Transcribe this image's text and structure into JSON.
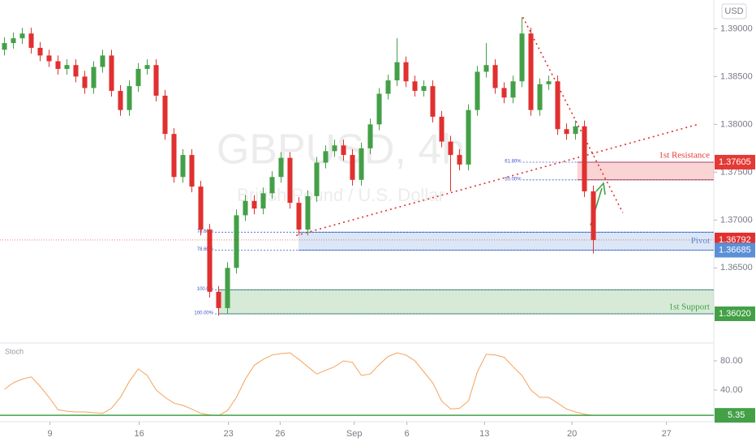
{
  "chart_data": {
    "type": "candlestick",
    "symbol_watermark": "GBPUSD, 4h",
    "description_watermark": "British Pound / U.S. Dollar",
    "currency_button": "USD",
    "up_color": "#43a047",
    "down_color": "#e0302f",
    "x": [
      0,
      1,
      2,
      3,
      4,
      5,
      6,
      7,
      8,
      9,
      10,
      11,
      12,
      13,
      14,
      15,
      16,
      17,
      18,
      19,
      20,
      21,
      22,
      23,
      24,
      25,
      26,
      27,
      28,
      29,
      30,
      31,
      32,
      33,
      34,
      35,
      36,
      37,
      38,
      39,
      40,
      41,
      42,
      43,
      44,
      45,
      46,
      47,
      48,
      49,
      50,
      51,
      52,
      53,
      54,
      55,
      56,
      57,
      58,
      59,
      60,
      61,
      62,
      63,
      64,
      65,
      66
    ],
    "open": [
      1.3878,
      1.3885,
      1.389,
      1.3895,
      1.388,
      1.3872,
      1.3866,
      1.3858,
      1.3862,
      1.385,
      1.3838,
      1.386,
      1.3872,
      1.3835,
      1.3815,
      1.384,
      1.3858,
      1.3862,
      1.383,
      1.379,
      1.3745,
      1.3768,
      1.3735,
      1.369,
      1.3625,
      1.3608,
      1.365,
      1.3705,
      1.372,
      1.3712,
      1.3728,
      1.3745,
      1.3765,
      1.3718,
      1.369,
      1.3725,
      1.376,
      1.3772,
      1.3778,
      1.3768,
      1.3742,
      1.3775,
      1.38,
      1.3832,
      1.3846,
      1.3865,
      1.3845,
      1.3835,
      1.384,
      1.3808,
      1.3782,
      1.3768,
      1.3758,
      1.3815,
      1.3855,
      1.3862,
      1.3838,
      1.3828,
      1.3845,
      1.3895,
      1.3815,
      1.3842,
      1.3845,
      1.3795,
      1.379,
      1.3798,
      1.373
    ],
    "high": [
      1.3891,
      1.3896,
      1.3901,
      1.3901,
      1.3886,
      1.3878,
      1.3872,
      1.3868,
      1.3868,
      1.3856,
      1.3866,
      1.3878,
      1.3878,
      1.3841,
      1.3846,
      1.3864,
      1.3868,
      1.3868,
      1.3836,
      1.3796,
      1.3774,
      1.3774,
      1.3741,
      1.3696,
      1.3631,
      1.3656,
      1.3711,
      1.3726,
      1.3726,
      1.3734,
      1.3751,
      1.3771,
      1.3771,
      1.3724,
      1.3731,
      1.3766,
      1.3778,
      1.3784,
      1.3784,
      1.3774,
      1.3781,
      1.3806,
      1.3838,
      1.3852,
      1.389,
      1.3871,
      1.3851,
      1.3846,
      1.3846,
      1.3814,
      1.3788,
      1.3774,
      1.3821,
      1.3861,
      1.3885,
      1.3868,
      1.3844,
      1.3851,
      1.3912,
      1.3901,
      1.3848,
      1.3851,
      1.3851,
      1.3801,
      1.3804,
      1.3804,
      1.3736
    ],
    "low": [
      1.3872,
      1.3879,
      1.3884,
      1.3874,
      1.3866,
      1.386,
      1.3852,
      1.3852,
      1.3844,
      1.3832,
      1.3832,
      1.3854,
      1.3829,
      1.3809,
      1.3809,
      1.3834,
      1.3852,
      1.3824,
      1.3784,
      1.3739,
      1.3739,
      1.3729,
      1.3684,
      1.3619,
      1.36,
      1.3602,
      1.3644,
      1.3699,
      1.3706,
      1.3706,
      1.3722,
      1.3739,
      1.3712,
      1.3684,
      1.3684,
      1.3719,
      1.3754,
      1.3766,
      1.3762,
      1.3736,
      1.3736,
      1.3769,
      1.3794,
      1.3826,
      1.384,
      1.3839,
      1.3829,
      1.3829,
      1.3802,
      1.3776,
      1.373,
      1.3752,
      1.3752,
      1.3809,
      1.3849,
      1.3832,
      1.3822,
      1.3822,
      1.3839,
      1.3809,
      1.3809,
      1.3836,
      1.3789,
      1.3784,
      1.3784,
      1.3724,
      1.3665
    ],
    "close": [
      1.3885,
      1.389,
      1.3895,
      1.388,
      1.3872,
      1.3866,
      1.3858,
      1.3862,
      1.385,
      1.3838,
      1.386,
      1.3872,
      1.3835,
      1.3815,
      1.384,
      1.3858,
      1.3862,
      1.383,
      1.379,
      1.3745,
      1.3768,
      1.3735,
      1.369,
      1.3625,
      1.3608,
      1.365,
      1.3705,
      1.372,
      1.3712,
      1.3728,
      1.3745,
      1.3765,
      1.3718,
      1.369,
      1.3725,
      1.376,
      1.3772,
      1.3778,
      1.3768,
      1.3742,
      1.3775,
      1.38,
      1.3832,
      1.3846,
      1.3865,
      1.3845,
      1.3835,
      1.384,
      1.3808,
      1.3782,
      1.3768,
      1.3758,
      1.3815,
      1.3855,
      1.3862,
      1.3838,
      1.3828,
      1.3845,
      1.3895,
      1.3815,
      1.3842,
      1.3845,
      1.3795,
      1.379,
      1.3798,
      1.373,
      1.36792
    ],
    "xlim": [
      -0.5,
      79.5
    ],
    "xticks": [
      {
        "value": 5.1,
        "label": "9"
      },
      {
        "value": 15.1,
        "label": "16"
      },
      {
        "value": 25.1,
        "label": "23"
      },
      {
        "value": 30.9,
        "label": "26"
      },
      {
        "value": 39.2,
        "label": "Sep"
      },
      {
        "value": 45.1,
        "label": "6"
      },
      {
        "value": 53.8,
        "label": "13"
      },
      {
        "value": 63.6,
        "label": "20"
      },
      {
        "value": 74.2,
        "label": "27"
      }
    ],
    "ylim": [
      1.3574,
      1.393
    ],
    "yticks": [
      {
        "value": 1.39,
        "label": "1.39000"
      },
      {
        "value": 1.385,
        "label": "1.38500"
      },
      {
        "value": 1.38,
        "label": "1.38000"
      },
      {
        "value": 1.375,
        "label": "1.37500"
      },
      {
        "value": 1.37,
        "label": "1.37000"
      },
      {
        "value": 1.365,
        "label": "1.36500"
      }
    ],
    "zones": [
      {
        "name": "1st Resistance",
        "top": 1.37605,
        "bottom": 1.3742,
        "x_start": 64.2,
        "color": "#e53935"
      },
      {
        "name": "Pivot",
        "top": 1.36873,
        "bottom": 1.36685,
        "x_start": 32.95,
        "color": "#5b8fd6"
      },
      {
        "name": "1st Support",
        "top": 1.36271,
        "bottom": 1.3602,
        "price_label": "1.36020",
        "x_start": 24.0,
        "color": "#43a047"
      }
    ],
    "fib_levels": [
      {
        "label": "61.80%",
        "value": 1.37605,
        "x_start": 58.1
      },
      {
        "label": "50.00%",
        "value": 1.3742,
        "x_start": 58.1
      },
      {
        "label": "78.60%",
        "value": 1.36873,
        "x_start": 23.6
      },
      {
        "label": "78.60%",
        "value": 1.36685,
        "x_start": 23.6
      },
      {
        "label": "100.0%",
        "value": 1.36271,
        "x_start": 23.6
      },
      {
        "label": "100.00%",
        "value": 1.3602,
        "x_start": 23.6
      }
    ],
    "trendlines": [
      {
        "x": [
          32.7,
          77.7
        ],
        "y": [
          1.36839,
          1.38
        ]
      },
      {
        "x": [
          58.1,
          69.3
        ],
        "y": [
          1.3912,
          1.37076
        ]
      }
    ],
    "indicator": {
      "name": "Stoch",
      "color": "#f5a35c",
      "level_color": "#43a047",
      "values": [
        41,
        50,
        55,
        58,
        45,
        30,
        13,
        11,
        10,
        10,
        9,
        8,
        15,
        30,
        52,
        69,
        60,
        40,
        30,
        22,
        19,
        14,
        8,
        6,
        5,
        12,
        30,
        55,
        74,
        82,
        88,
        90,
        91,
        82,
        72,
        62,
        67,
        72,
        80,
        78,
        60,
        62,
        75,
        86,
        91,
        88,
        80,
        65,
        50,
        25,
        14,
        15,
        25,
        65,
        89,
        88,
        85,
        72,
        60,
        40,
        30,
        30,
        22,
        14,
        10,
        7,
        5.35
      ],
      "ylim": [
        0,
        100
      ],
      "yticks": [
        {
          "value": 80,
          "label": "80.00"
        },
        {
          "value": 40,
          "label": "40.00"
        }
      ]
    }
  }
}
